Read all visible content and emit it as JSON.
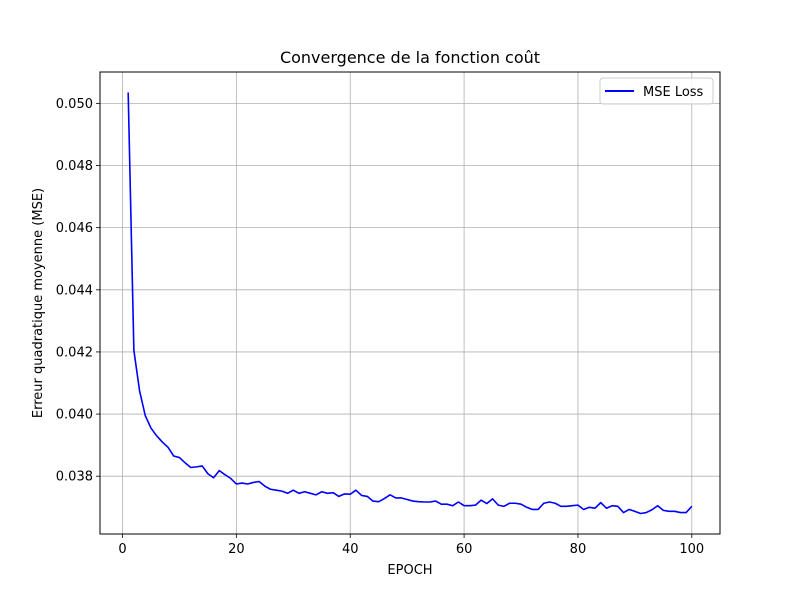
{
  "chart_data": {
    "type": "line",
    "title": "Convergence de la fonction coût",
    "xlabel": "EPOCH",
    "ylabel": "Erreur quadratique moyenne (MSE)",
    "xlim": [
      -3.95,
      104.95
    ],
    "ylim": [
      0.03614,
      0.05101
    ],
    "x_ticks": [
      0,
      20,
      40,
      60,
      80,
      100
    ],
    "y_ticks": [
      0.038,
      0.04,
      0.042,
      0.044,
      0.046,
      0.048,
      0.05
    ],
    "x_tick_labels": [
      "0",
      "20",
      "40",
      "60",
      "80",
      "100"
    ],
    "y_tick_labels": [
      "0.038",
      "0.040",
      "0.042",
      "0.044",
      "0.046",
      "0.048",
      "0.050"
    ],
    "grid": true,
    "legend_position": "upper right",
    "series": [
      {
        "name": "MSE Loss",
        "color": "#0000ff",
        "x": [
          1,
          2,
          3,
          4,
          5,
          6,
          7,
          8,
          9,
          10,
          11,
          12,
          13,
          14,
          15,
          16,
          17,
          18,
          19,
          20,
          21,
          22,
          23,
          24,
          25,
          26,
          27,
          28,
          29,
          30,
          31,
          32,
          33,
          34,
          35,
          36,
          37,
          38,
          39,
          40,
          41,
          42,
          43,
          44,
          45,
          46,
          47,
          48,
          49,
          50,
          51,
          52,
          53,
          54,
          55,
          56,
          57,
          58,
          59,
          60,
          61,
          62,
          63,
          64,
          65,
          66,
          67,
          68,
          69,
          70,
          71,
          72,
          73,
          74,
          75,
          76,
          77,
          78,
          79,
          80,
          81,
          82,
          83,
          84,
          85,
          86,
          87,
          88,
          89,
          90,
          91,
          92,
          93,
          94,
          95,
          96,
          97,
          98,
          99,
          100
        ],
        "y": [
          0.05035,
          0.04205,
          0.04075,
          0.03995,
          0.03955,
          0.0393,
          0.0391,
          0.03893,
          0.03865,
          0.0386,
          0.03843,
          0.03828,
          0.0383,
          0.03833,
          0.03808,
          0.03795,
          0.03818,
          0.03805,
          0.03793,
          0.03775,
          0.03778,
          0.03775,
          0.0378,
          0.03783,
          0.03768,
          0.03758,
          0.03755,
          0.03752,
          0.03745,
          0.03755,
          0.03745,
          0.0375,
          0.03745,
          0.0374,
          0.0375,
          0.03745,
          0.03747,
          0.03735,
          0.03743,
          0.03742,
          0.03755,
          0.03738,
          0.03735,
          0.0372,
          0.03718,
          0.03728,
          0.0374,
          0.0373,
          0.0373,
          0.03725,
          0.0372,
          0.03718,
          0.03717,
          0.03717,
          0.0372,
          0.0371,
          0.0371,
          0.03705,
          0.03717,
          0.03705,
          0.03705,
          0.03707,
          0.03723,
          0.03712,
          0.03727,
          0.03707,
          0.03703,
          0.03713,
          0.03713,
          0.0371,
          0.037,
          0.03693,
          0.03693,
          0.03713,
          0.03717,
          0.03713,
          0.03703,
          0.03703,
          0.03705,
          0.03707,
          0.03693,
          0.037,
          0.03697,
          0.03715,
          0.03697,
          0.03705,
          0.03703,
          0.03683,
          0.03693,
          0.03687,
          0.0368,
          0.03683,
          0.03692,
          0.03705,
          0.0369,
          0.03687,
          0.03687,
          0.03683,
          0.03683,
          0.03703
        ]
      }
    ]
  }
}
